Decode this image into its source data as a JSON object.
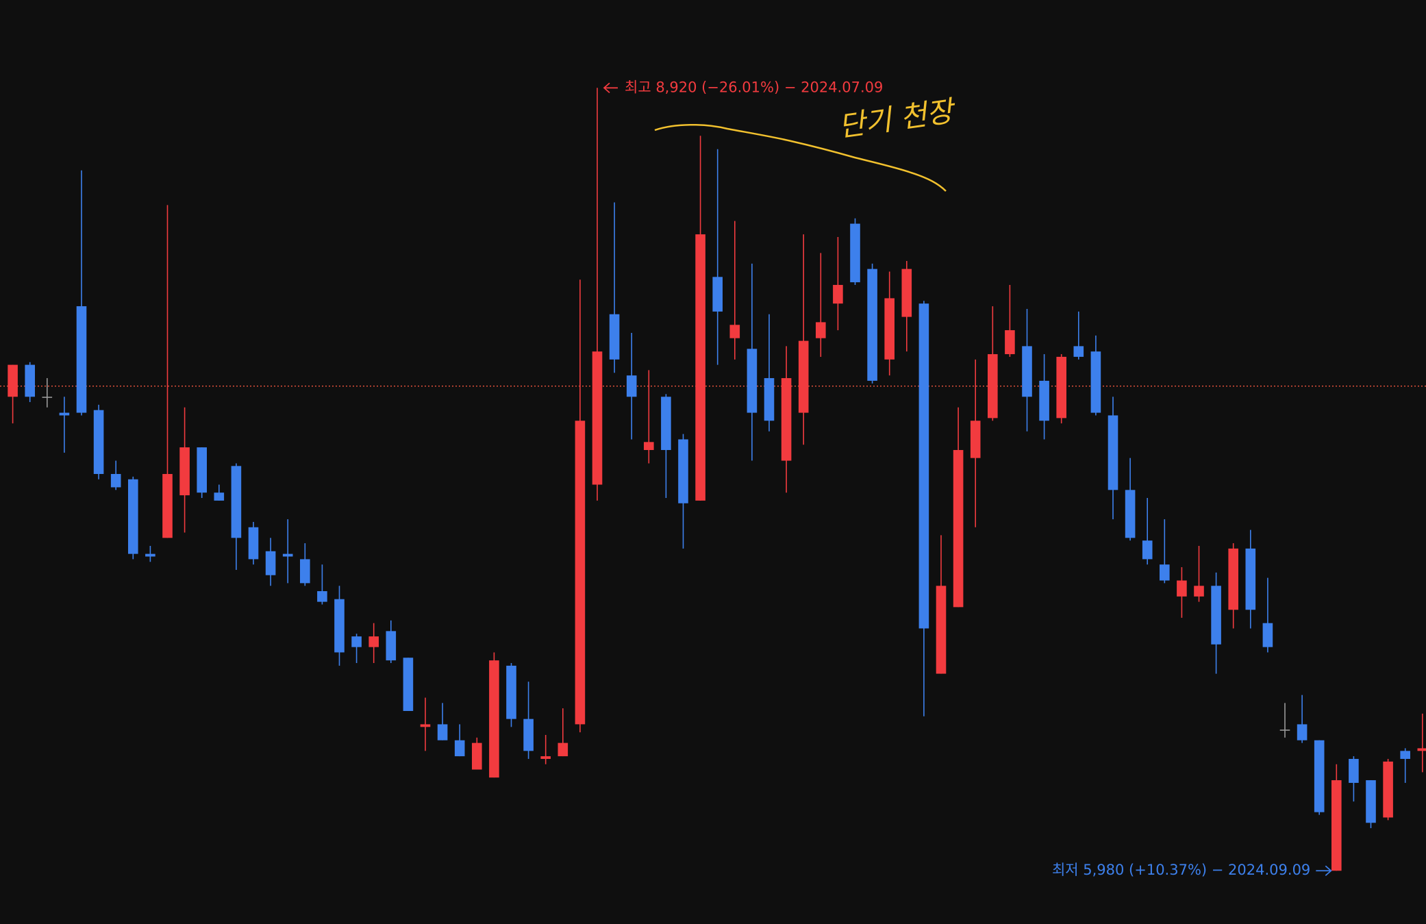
{
  "chart_data": {
    "type": "candlestick",
    "categories": [
      null,
      null,
      null,
      null,
      null,
      null,
      null,
      null,
      null,
      null,
      null,
      null,
      null,
      null,
      null,
      null,
      null,
      null,
      null,
      null,
      null,
      null,
      null,
      null,
      null,
      null,
      null,
      null,
      null,
      null,
      null,
      null,
      null,
      null,
      null,
      null,
      null,
      null,
      null,
      null,
      null,
      null,
      null,
      null,
      null,
      null,
      null,
      null,
      null,
      null,
      null,
      null,
      null,
      null,
      null,
      null,
      null,
      null,
      null,
      null,
      null,
      null,
      null,
      null,
      null,
      null,
      null,
      null,
      null,
      null,
      null,
      null,
      null,
      null,
      null,
      null,
      null,
      null,
      null,
      null,
      null,
      null,
      null
    ],
    "open": [
      7760,
      7880,
      7760,
      7700,
      8100,
      7710,
      7470,
      7450,
      7170,
      7230,
      7390,
      7570,
      7400,
      7500,
      7270,
      7180,
      7170,
      7150,
      7030,
      7000,
      6860,
      6820,
      6880,
      6780,
      6520,
      6530,
      6470,
      6360,
      6330,
      6750,
      6550,
      6400,
      6410,
      6530,
      7430,
      8070,
      7840,
      7560,
      7760,
      7600,
      7370,
      8210,
      7980,
      7940,
      7830,
      7520,
      7700,
      7980,
      8110,
      8410,
      8240,
      7900,
      8060,
      8110,
      6720,
      6970,
      7530,
      7680,
      7920,
      7950,
      7820,
      7680,
      7950,
      7930,
      7690,
      7410,
      7220,
      7130,
      7010,
      7010,
      7050,
      6960,
      7190,
      6910,
      6510,
      6530,
      6470,
      5980,
      6400,
      6320,
      6180,
      6430,
      6430
    ],
    "high": [
      7880,
      7890,
      7830,
      7760,
      8610,
      7730,
      7520,
      7460,
      7200,
      8480,
      7720,
      7570,
      7430,
      7510,
      7290,
      7230,
      7300,
      7210,
      7130,
      7050,
      6870,
      6910,
      6920,
      6780,
      6630,
      6610,
      6530,
      6480,
      6800,
      6760,
      6690,
      6490,
      6590,
      8200,
      8920,
      8490,
      8000,
      7860,
      7770,
      7620,
      8740,
      8690,
      8420,
      8260,
      8070,
      7950,
      8370,
      8300,
      8360,
      8430,
      8260,
      8230,
      8270,
      8120,
      7240,
      7720,
      7900,
      8100,
      8180,
      8090,
      7920,
      7920,
      8080,
      7990,
      7760,
      7530,
      7380,
      7300,
      7120,
      7200,
      7100,
      7210,
      7260,
      7080,
      6610,
      6640,
      6470,
      6380,
      6410,
      6320,
      6400,
      6440,
      6570
    ],
    "low": [
      7660,
      7740,
      7720,
      7550,
      7690,
      7450,
      7410,
      7150,
      7140,
      7230,
      7250,
      7380,
      7370,
      7110,
      7130,
      7050,
      7060,
      7050,
      6980,
      6750,
      6760,
      6760,
      6760,
      6580,
      6430,
      6470,
      6410,
      6360,
      6330,
      6520,
      6400,
      6380,
      6410,
      6500,
      7370,
      7850,
      7600,
      7510,
      7380,
      7190,
      7370,
      7880,
      7900,
      7520,
      7630,
      7400,
      7580,
      7910,
      8010,
      8180,
      7810,
      7840,
      7930,
      6560,
      6720,
      6970,
      7270,
      7670,
      7910,
      7630,
      7600,
      7660,
      7900,
      7690,
      7300,
      7220,
      7130,
      7060,
      6930,
      6990,
      6720,
      6890,
      6890,
      6800,
      6480,
      6460,
      6190,
      5980,
      6240,
      6140,
      6170,
      6310,
      6350
    ],
    "close": [
      7880,
      7760,
      7760,
      7690,
      7700,
      7470,
      7420,
      7170,
      7160,
      7470,
      7570,
      7400,
      7370,
      7230,
      7150,
      7090,
      7160,
      7060,
      6990,
      6800,
      6820,
      6860,
      6770,
      6580,
      6530,
      6470,
      6410,
      6460,
      6770,
      6550,
      6430,
      6410,
      6460,
      7670,
      7930,
      7900,
      7760,
      7590,
      7560,
      7360,
      8370,
      8080,
      8030,
      7700,
      7670,
      7830,
      7970,
      8040,
      8180,
      8190,
      7820,
      8130,
      8240,
      6890,
      7050,
      7560,
      7670,
      7920,
      8010,
      7760,
      7670,
      7910,
      7910,
      7700,
      7410,
      7230,
      7150,
      7070,
      7070,
      7050,
      6830,
      7190,
      6960,
      6820,
      6510,
      6470,
      6200,
      6320,
      6310,
      6160,
      6390,
      6400,
      6440
    ],
    "up_color": "#f23b3f",
    "down_color": "#3d80ec",
    "flat_color": "#9a9a9a",
    "ylim": [
      5780,
      9250
    ],
    "reference_line": 7800,
    "high_label": "최고 8,920 (−26.01%) − 2024.07.09",
    "low_label": "최저 5,980 (+10.37%) − 2024.09.09",
    "note": "단기 천장"
  }
}
